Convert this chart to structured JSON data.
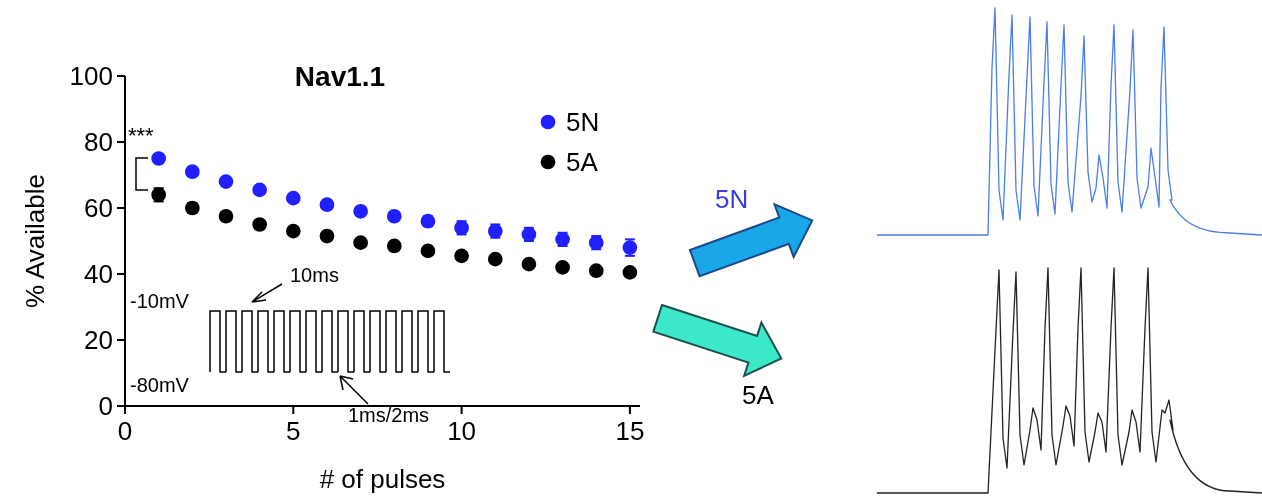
{
  "chart_data": {
    "type": "scatter",
    "title": "Nav1.1",
    "xlabel": "# of pulses",
    "ylabel": "% Available",
    "x": [
      1,
      2,
      3,
      4,
      5,
      6,
      7,
      8,
      9,
      10,
      11,
      12,
      13,
      14,
      15
    ],
    "series": [
      {
        "name": "5N",
        "color": "#1f1fff",
        "values": [
          75,
          71,
          68,
          65.5,
          63,
          61,
          59,
          57.5,
          56,
          54,
          53,
          52,
          50.5,
          49.5,
          48
        ],
        "errors": [
          null,
          null,
          null,
          null,
          null,
          null,
          null,
          null,
          1.5,
          2,
          2,
          2,
          2,
          2,
          2.5
        ]
      },
      {
        "name": "5A",
        "color": "#000000",
        "values": [
          64,
          60,
          57.5,
          55,
          53,
          51.5,
          49.5,
          48.5,
          47,
          45.5,
          44.5,
          43,
          42,
          41,
          40.5
        ],
        "errors": [
          2,
          1.5,
          null,
          null,
          null,
          null,
          null,
          null,
          null,
          null,
          null,
          null,
          null,
          null,
          null
        ]
      }
    ],
    "xlim": [
      0,
      15.3
    ],
    "ylim": [
      0,
      100
    ],
    "xticks": [
      0,
      5,
      10,
      15
    ],
    "yticks": [
      0,
      20,
      40,
      60,
      80,
      100
    ],
    "grid": false,
    "legend": "top right",
    "marker": "circle",
    "annotations": [
      "***",
      "-10mV",
      "-80mV",
      "10ms",
      "1ms/2ms",
      "5N",
      "5A"
    ]
  }
}
